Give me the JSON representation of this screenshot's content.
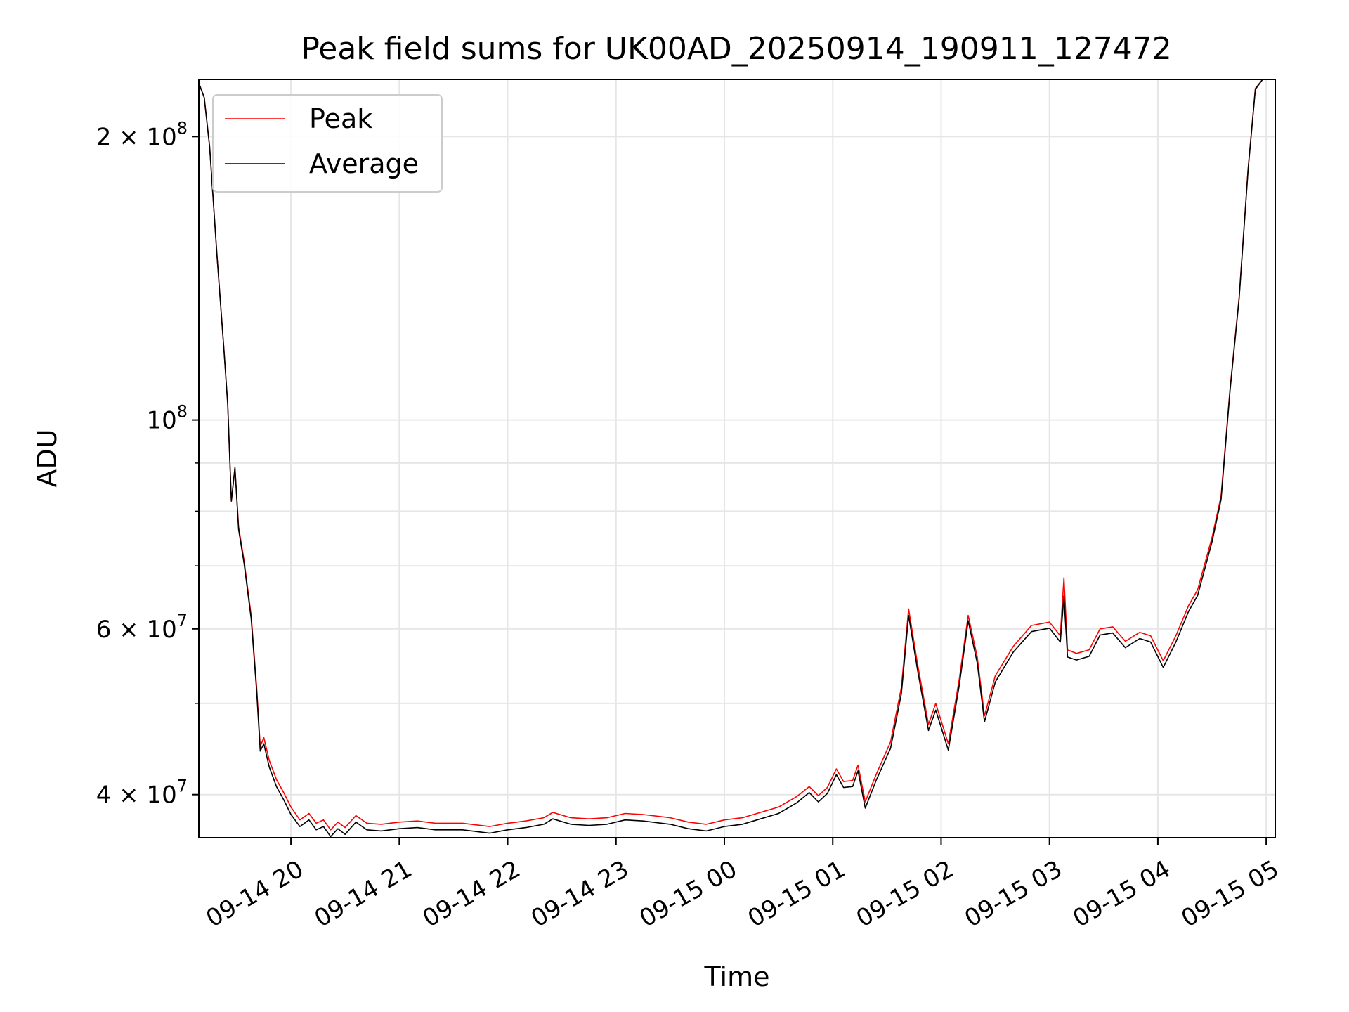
{
  "chart_data": {
    "type": "line",
    "title": "Peak field sums for UK00AD_20250914_190911_127472",
    "xlabel": "Time",
    "ylabel": "ADU",
    "x_range": [
      "2025-09-14 19:09",
      "2025-09-15 05:05"
    ],
    "ylim": [
      36000000,
      230000000
    ],
    "y_scale": "log",
    "grid": true,
    "legend_position": "top-left",
    "x_tick_labels": [
      "09-14 20",
      "09-14 21",
      "09-14 22",
      "09-14 23",
      "09-15 00",
      "09-15 01",
      "09-15 02",
      "09-15 03",
      "09-15 04",
      "09-15 05"
    ],
    "x_tick_values": [
      "2025-09-14 20:00",
      "2025-09-14 21:00",
      "2025-09-14 22:00",
      "2025-09-14 23:00",
      "2025-09-15 00:00",
      "2025-09-15 01:00",
      "2025-09-15 02:00",
      "2025-09-15 03:00",
      "2025-09-15 04:00",
      "2025-09-15 05:00"
    ],
    "y_major_ticks": [
      {
        "value": 40000000,
        "mant": "4 × 10",
        "exp": "7"
      },
      {
        "value": 60000000,
        "mant": "6 × 10",
        "exp": "7"
      },
      {
        "value": 100000000,
        "mant": "10",
        "exp": "8"
      },
      {
        "value": 200000000,
        "mant": "2 × 10",
        "exp": "8"
      }
    ],
    "y_minor_ticks": [
      50000000,
      70000000,
      80000000,
      90000000
    ],
    "series": [
      {
        "name": "Peak",
        "color": "#ff0000",
        "points": [
          [
            "2025-09-14 19:09",
            228000000
          ],
          [
            "2025-09-14 19:12",
            220000000
          ],
          [
            "2025-09-14 19:15",
            195000000
          ],
          [
            "2025-09-14 19:19",
            150000000
          ],
          [
            "2025-09-14 19:23",
            118000000
          ],
          [
            "2025-09-14 19:25",
            104000000
          ],
          [
            "2025-09-14 19:27",
            82000000
          ],
          [
            "2025-09-14 19:29",
            89000000
          ],
          [
            "2025-09-14 19:31",
            77000000
          ],
          [
            "2025-09-14 19:34",
            71000000
          ],
          [
            "2025-09-14 19:38",
            62000000
          ],
          [
            "2025-09-14 19:41",
            52000000
          ],
          [
            "2025-09-14 19:43",
            45000000
          ],
          [
            "2025-09-14 19:45",
            46000000
          ],
          [
            "2025-09-14 19:48",
            43500000
          ],
          [
            "2025-09-14 19:52",
            41500000
          ],
          [
            "2025-09-14 19:56",
            40200000
          ],
          [
            "2025-09-14 20:00",
            38800000
          ],
          [
            "2025-09-14 20:05",
            37600000
          ],
          [
            "2025-09-14 20:10",
            38200000
          ],
          [
            "2025-09-14 20:14",
            37300000
          ],
          [
            "2025-09-14 20:18",
            37600000
          ],
          [
            "2025-09-14 20:22",
            36700000
          ],
          [
            "2025-09-14 20:26",
            37400000
          ],
          [
            "2025-09-14 20:30",
            36900000
          ],
          [
            "2025-09-14 20:36",
            38000000
          ],
          [
            "2025-09-14 20:42",
            37300000
          ],
          [
            "2025-09-14 20:50",
            37200000
          ],
          [
            "2025-09-14 21:00",
            37400000
          ],
          [
            "2025-09-14 21:10",
            37500000
          ],
          [
            "2025-09-14 21:20",
            37300000
          ],
          [
            "2025-09-14 21:35",
            37300000
          ],
          [
            "2025-09-14 21:50",
            37000000
          ],
          [
            "2025-09-14 22:00",
            37300000
          ],
          [
            "2025-09-14 22:10",
            37500000
          ],
          [
            "2025-09-14 22:20",
            37800000
          ],
          [
            "2025-09-14 22:25",
            38300000
          ],
          [
            "2025-09-14 22:35",
            37800000
          ],
          [
            "2025-09-14 22:45",
            37700000
          ],
          [
            "2025-09-14 22:55",
            37800000
          ],
          [
            "2025-09-14 23:05",
            38200000
          ],
          [
            "2025-09-14 23:15",
            38100000
          ],
          [
            "2025-09-14 23:30",
            37800000
          ],
          [
            "2025-09-14 23:40",
            37400000
          ],
          [
            "2025-09-14 23:50",
            37200000
          ],
          [
            "2025-09-15 00:00",
            37600000
          ],
          [
            "2025-09-15 00:10",
            37800000
          ],
          [
            "2025-09-15 00:20",
            38300000
          ],
          [
            "2025-09-15 00:30",
            38800000
          ],
          [
            "2025-09-15 00:40",
            39800000
          ],
          [
            "2025-09-15 00:47",
            40800000
          ],
          [
            "2025-09-15 00:52",
            39900000
          ],
          [
            "2025-09-15 00:57",
            40700000
          ],
          [
            "2025-09-15 01:02",
            42600000
          ],
          [
            "2025-09-15 01:06",
            41300000
          ],
          [
            "2025-09-15 01:11",
            41400000
          ],
          [
            "2025-09-15 01:14",
            43000000
          ],
          [
            "2025-09-15 01:18",
            39300000
          ],
          [
            "2025-09-15 01:24",
            42000000
          ],
          [
            "2025-09-15 01:32",
            45500000
          ],
          [
            "2025-09-15 01:38",
            52000000
          ],
          [
            "2025-09-15 01:42",
            63000000
          ],
          [
            "2025-09-15 01:47",
            55000000
          ],
          [
            "2025-09-15 01:53",
            47500000
          ],
          [
            "2025-09-15 01:57",
            50000000
          ],
          [
            "2025-09-15 02:04",
            45300000
          ],
          [
            "2025-09-15 02:10",
            53000000
          ],
          [
            "2025-09-15 02:15",
            62000000
          ],
          [
            "2025-09-15 02:20",
            56000000
          ],
          [
            "2025-09-15 02:24",
            48500000
          ],
          [
            "2025-09-15 02:30",
            53500000
          ],
          [
            "2025-09-15 02:40",
            57500000
          ],
          [
            "2025-09-15 02:50",
            60500000
          ],
          [
            "2025-09-15 03:00",
            61000000
          ],
          [
            "2025-09-15 03:06",
            59000000
          ],
          [
            "2025-09-15 03:08",
            68000000
          ],
          [
            "2025-09-15 03:10",
            57000000
          ],
          [
            "2025-09-15 03:15",
            56500000
          ],
          [
            "2025-09-15 03:22",
            57000000
          ],
          [
            "2025-09-15 03:28",
            60000000
          ],
          [
            "2025-09-15 03:35",
            60300000
          ],
          [
            "2025-09-15 03:42",
            58200000
          ],
          [
            "2025-09-15 03:50",
            59500000
          ],
          [
            "2025-09-15 03:56",
            59000000
          ],
          [
            "2025-09-15 04:03",
            55500000
          ],
          [
            "2025-09-15 04:10",
            59000000
          ],
          [
            "2025-09-15 04:17",
            63500000
          ],
          [
            "2025-09-15 04:22",
            66000000
          ],
          [
            "2025-09-15 04:30",
            75000000
          ],
          [
            "2025-09-15 04:35",
            83000000
          ],
          [
            "2025-09-15 04:40",
            108000000
          ],
          [
            "2025-09-15 04:45",
            135000000
          ],
          [
            "2025-09-15 04:50",
            185000000
          ],
          [
            "2025-09-15 04:54",
            225000000
          ],
          [
            "2025-09-15 04:58",
            230000000
          ],
          [
            "2025-09-15 05:04",
            230000000
          ]
        ]
      },
      {
        "name": "Average",
        "color": "#000000",
        "points": [
          [
            "2025-09-14 19:09",
            228000000
          ],
          [
            "2025-09-14 19:12",
            220000000
          ],
          [
            "2025-09-14 19:15",
            195000000
          ],
          [
            "2025-09-14 19:19",
            150000000
          ],
          [
            "2025-09-14 19:23",
            118000000
          ],
          [
            "2025-09-14 19:25",
            104000000
          ],
          [
            "2025-09-14 19:27",
            82000000
          ],
          [
            "2025-09-14 19:29",
            89000000
          ],
          [
            "2025-09-14 19:31",
            76500000
          ],
          [
            "2025-09-14 19:34",
            70500000
          ],
          [
            "2025-09-14 19:38",
            61500000
          ],
          [
            "2025-09-14 19:41",
            51500000
          ],
          [
            "2025-09-14 19:43",
            44500000
          ],
          [
            "2025-09-14 19:45",
            45300000
          ],
          [
            "2025-09-14 19:48",
            42800000
          ],
          [
            "2025-09-14 19:52",
            40800000
          ],
          [
            "2025-09-14 19:56",
            39500000
          ],
          [
            "2025-09-14 20:00",
            38100000
          ],
          [
            "2025-09-14 20:05",
            37000000
          ],
          [
            "2025-09-14 20:10",
            37600000
          ],
          [
            "2025-09-14 20:14",
            36700000
          ],
          [
            "2025-09-14 20:18",
            37000000
          ],
          [
            "2025-09-14 20:22",
            36100000
          ],
          [
            "2025-09-14 20:26",
            36800000
          ],
          [
            "2025-09-14 20:30",
            36300000
          ],
          [
            "2025-09-14 20:36",
            37400000
          ],
          [
            "2025-09-14 20:42",
            36700000
          ],
          [
            "2025-09-14 20:50",
            36600000
          ],
          [
            "2025-09-14 21:00",
            36800000
          ],
          [
            "2025-09-14 21:10",
            36900000
          ],
          [
            "2025-09-14 21:20",
            36700000
          ],
          [
            "2025-09-14 21:35",
            36700000
          ],
          [
            "2025-09-14 21:50",
            36400000
          ],
          [
            "2025-09-14 22:00",
            36700000
          ],
          [
            "2025-09-14 22:10",
            36900000
          ],
          [
            "2025-09-14 22:20",
            37200000
          ],
          [
            "2025-09-14 22:25",
            37700000
          ],
          [
            "2025-09-14 22:35",
            37200000
          ],
          [
            "2025-09-14 22:45",
            37100000
          ],
          [
            "2025-09-14 22:55",
            37200000
          ],
          [
            "2025-09-14 23:05",
            37600000
          ],
          [
            "2025-09-14 23:15",
            37500000
          ],
          [
            "2025-09-14 23:30",
            37200000
          ],
          [
            "2025-09-14 23:40",
            36800000
          ],
          [
            "2025-09-14 23:50",
            36600000
          ],
          [
            "2025-09-15 00:00",
            37000000
          ],
          [
            "2025-09-15 00:10",
            37200000
          ],
          [
            "2025-09-15 00:20",
            37700000
          ],
          [
            "2025-09-15 00:30",
            38200000
          ],
          [
            "2025-09-15 00:40",
            39200000
          ],
          [
            "2025-09-15 00:47",
            40200000
          ],
          [
            "2025-09-15 00:52",
            39300000
          ],
          [
            "2025-09-15 00:57",
            40100000
          ],
          [
            "2025-09-15 01:02",
            42000000
          ],
          [
            "2025-09-15 01:06",
            40700000
          ],
          [
            "2025-09-15 01:11",
            40800000
          ],
          [
            "2025-09-15 01:14",
            42400000
          ],
          [
            "2025-09-15 01:18",
            38700000
          ],
          [
            "2025-09-15 01:24",
            41400000
          ],
          [
            "2025-09-15 01:32",
            44800000
          ],
          [
            "2025-09-15 01:38",
            51200000
          ],
          [
            "2025-09-15 01:42",
            62000000
          ],
          [
            "2025-09-15 01:47",
            54200000
          ],
          [
            "2025-09-15 01:53",
            46800000
          ],
          [
            "2025-09-15 01:57",
            49200000
          ],
          [
            "2025-09-15 02:04",
            44600000
          ],
          [
            "2025-09-15 02:10",
            52200000
          ],
          [
            "2025-09-15 02:15",
            61200000
          ],
          [
            "2025-09-15 02:20",
            55200000
          ],
          [
            "2025-09-15 02:24",
            47800000
          ],
          [
            "2025-09-15 02:30",
            52700000
          ],
          [
            "2025-09-15 02:40",
            56700000
          ],
          [
            "2025-09-15 02:50",
            59600000
          ],
          [
            "2025-09-15 03:00",
            60100000
          ],
          [
            "2025-09-15 03:06",
            58100000
          ],
          [
            "2025-09-15 03:08",
            65000000
          ],
          [
            "2025-09-15 03:10",
            56000000
          ],
          [
            "2025-09-15 03:15",
            55600000
          ],
          [
            "2025-09-15 03:22",
            56100000
          ],
          [
            "2025-09-15 03:28",
            59100000
          ],
          [
            "2025-09-15 03:35",
            59400000
          ],
          [
            "2025-09-15 03:42",
            57300000
          ],
          [
            "2025-09-15 03:50",
            58600000
          ],
          [
            "2025-09-15 03:56",
            58100000
          ],
          [
            "2025-09-15 04:03",
            54600000
          ],
          [
            "2025-09-15 04:10",
            58100000
          ],
          [
            "2025-09-15 04:17",
            62600000
          ],
          [
            "2025-09-15 04:22",
            65100000
          ],
          [
            "2025-09-15 04:30",
            74200000
          ],
          [
            "2025-09-15 04:35",
            82300000
          ],
          [
            "2025-09-15 04:40",
            107500000
          ],
          [
            "2025-09-15 04:45",
            134500000
          ],
          [
            "2025-09-15 04:50",
            184500000
          ],
          [
            "2025-09-15 04:54",
            224500000
          ],
          [
            "2025-09-15 04:58",
            230000000
          ],
          [
            "2025-09-15 05:04",
            230000000
          ]
        ]
      }
    ]
  }
}
